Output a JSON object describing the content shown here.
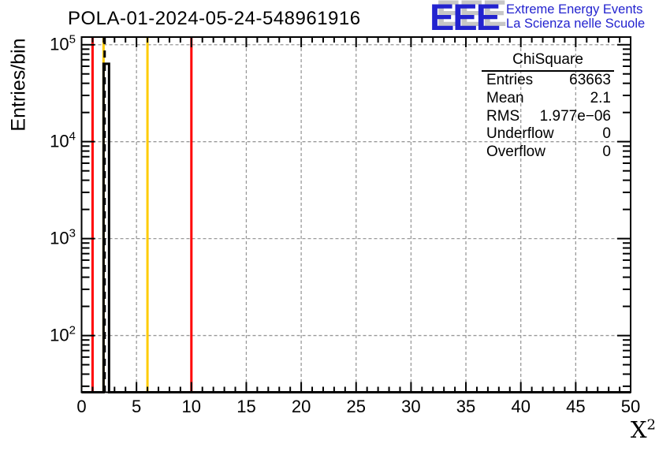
{
  "header": {
    "title": "POLA-01-2024-05-24-548961916"
  },
  "logo": {
    "acronym": "EEE",
    "line1": "Extreme Energy Events",
    "line2": "La Scienza nelle Scuole",
    "color": "#2323cf"
  },
  "stats": {
    "title": "ChiSquare",
    "rows": [
      {
        "label": "Entries",
        "value": "63663"
      },
      {
        "label": "Mean",
        "value": "2.1"
      },
      {
        "label": "RMS",
        "value": "1.977e−06"
      },
      {
        "label": "Underflow",
        "value": "0"
      },
      {
        "label": "Overflow",
        "value": "0"
      }
    ]
  },
  "chart_data": {
    "type": "bar",
    "title": "POLA-01-2024-05-24-548961916",
    "xlabel": "X^2",
    "xlabel_base": "X",
    "xlabel_exp": "2",
    "ylabel": "Entries/bin",
    "x_range": [
      0,
      50
    ],
    "y_scale": "log",
    "y_range": [
      26,
      120000
    ],
    "x_major_ticks": [
      0,
      5,
      10,
      15,
      20,
      25,
      30,
      35,
      40,
      45,
      50
    ],
    "x_minor_tick_step": 1,
    "y_decade_ticks": [
      100,
      1000,
      10000,
      100000
    ],
    "grid": {
      "show": true,
      "style": "dashed",
      "color": "#999999"
    },
    "frame_color": "#000000",
    "histogram": {
      "name": "ChiSquare",
      "entries": 63663,
      "mean": 2.1,
      "rms": "1.977e-06",
      "line_color": "#000000",
      "bins_nonzero": [
        {
          "x_low": 2.0,
          "x_high": 2.5,
          "count": 63663
        }
      ]
    },
    "reference_lines": [
      {
        "x": 1,
        "color": "#ff0000",
        "style": "solid"
      },
      {
        "x": 2,
        "color": "#ffcc00",
        "style": "solid"
      },
      {
        "x": 2.1,
        "color": "#000000",
        "style": "dashed"
      },
      {
        "x": 6,
        "color": "#ffcc00",
        "style": "solid"
      },
      {
        "x": 10,
        "color": "#ff0000",
        "style": "solid"
      }
    ]
  }
}
